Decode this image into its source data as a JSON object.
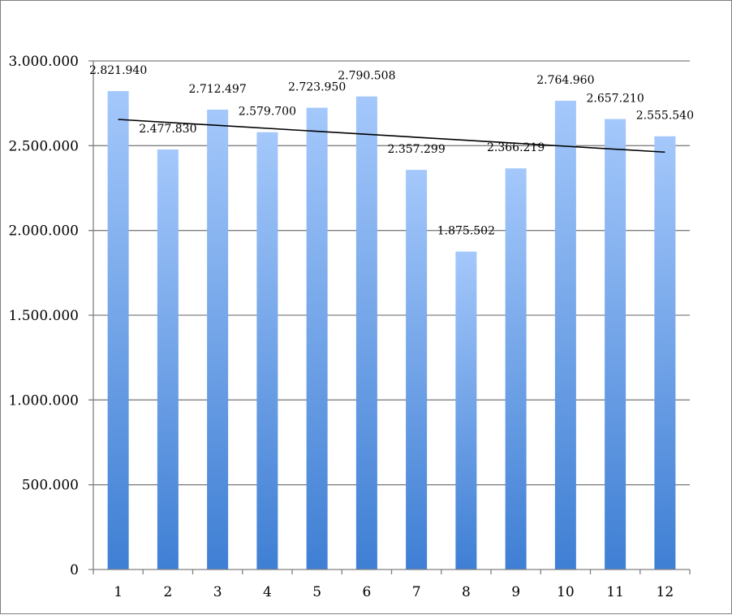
{
  "chart_data": {
    "type": "bar",
    "title": "",
    "xlabel": "",
    "ylabel": "",
    "categories": [
      "1",
      "2",
      "3",
      "4",
      "5",
      "6",
      "7",
      "8",
      "9",
      "10",
      "11",
      "12"
    ],
    "values": [
      2821940,
      2477830,
      2712497,
      2579700,
      2723950,
      2790508,
      2357299,
      1875502,
      2366219,
      2764960,
      2657210,
      2555540
    ],
    "value_labels": [
      "2.821.940",
      "2.477.830",
      "2.712.497",
      "2.579.700",
      "2.723.950",
      "2.790.508",
      "2.357.299",
      "1.875.502",
      "2.366.219",
      "2.764.960",
      "2.657.210",
      "2.555.540"
    ],
    "ylim": [
      0,
      3000000
    ],
    "yticks": [
      0,
      500000,
      1000000,
      1500000,
      2000000,
      2500000,
      3000000
    ],
    "ytick_labels": [
      "0",
      "500.000",
      "1.000.000",
      "1.500.000",
      "2.000.000",
      "2.500.000",
      "3.000.000"
    ],
    "grid": true,
    "legend": "none",
    "trendline": {
      "type": "linear",
      "start": 2655000,
      "end": 2462000
    },
    "colors": {
      "bar_top": "#a4c8fb",
      "bar_bottom": "#3f7fd4",
      "trendline": "#000000",
      "grid": "#808080"
    }
  }
}
